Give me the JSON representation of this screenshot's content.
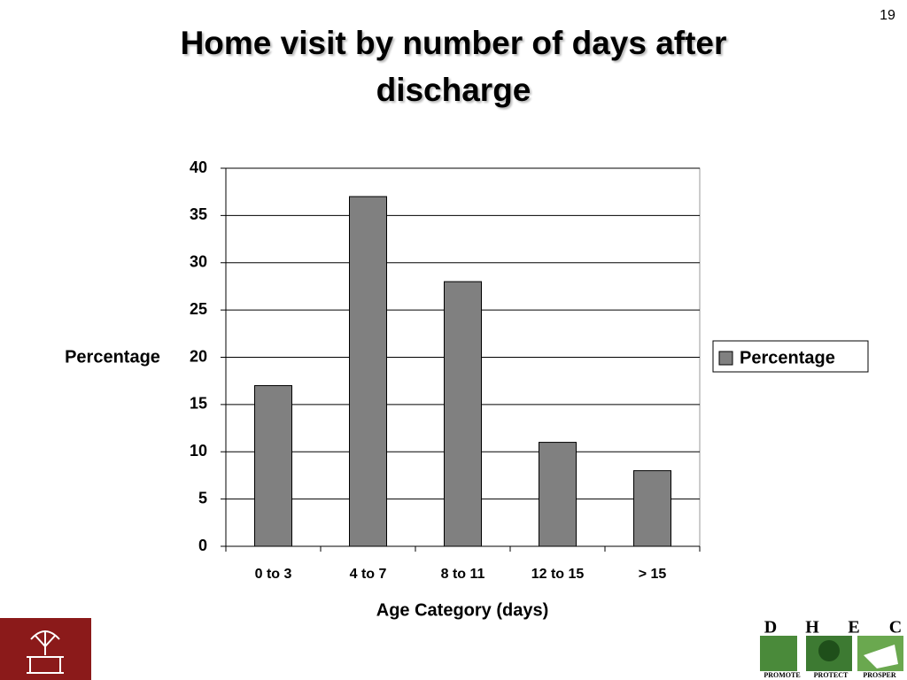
{
  "slide_number": "19",
  "logo": {
    "letters": [
      "D",
      "H",
      "E",
      "C"
    ],
    "tagline": [
      "PROMOTE",
      "PROTECT",
      "PROSPER"
    ]
  },
  "chart_data": {
    "type": "bar",
    "title": "Home visit by number of days after discharge",
    "x_label": "Age Category (days)",
    "y_label": "Percentage",
    "categories": [
      "0 to 3",
      "4 to 7",
      "8 to 11",
      "12 to 15",
      "> 15"
    ],
    "series": [
      {
        "name": "Percentage",
        "color": "#808080",
        "values": [
          17,
          37,
          28,
          11,
          8
        ]
      }
    ],
    "ylim": [
      0,
      40
    ],
    "yticks": [
      0,
      5,
      10,
      15,
      20,
      25,
      30,
      35,
      40
    ],
    "grid": true,
    "legend": "right"
  }
}
